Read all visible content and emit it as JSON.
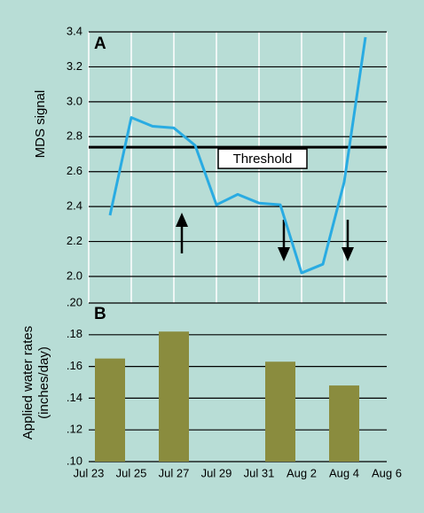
{
  "chart_data": [
    {
      "type": "line",
      "panel": "A",
      "ylabel": "MDS signal",
      "x": [
        "Jul 24",
        "Jul 25",
        "Jul 26",
        "Jul 27",
        "Jul 28",
        "Jul 29",
        "Jul 30",
        "Jul 31",
        "Aug 1",
        "Aug 2",
        "Aug 3",
        "Aug 4",
        "Aug 5"
      ],
      "values": [
        2.35,
        2.91,
        2.86,
        2.85,
        2.75,
        2.41,
        2.47,
        2.42,
        2.41,
        2.02,
        2.07,
        2.54,
        3.37
      ],
      "color": "#29abe2",
      "xlim": [
        "Jul 23",
        "Aug 6"
      ],
      "ylim": [
        2.0,
        3.4
      ],
      "yticks": [
        {
          "value": 2.0,
          "label": "2.0"
        },
        2.2,
        2.4,
        2.6,
        2.8,
        {
          "value": 3.0,
          "label": "3.0"
        },
        3.2,
        3.4
      ],
      "threshold": {
        "value": 2.74,
        "label": "Threshold"
      }
    },
    {
      "type": "bar",
      "panel": "B",
      "ylabel": [
        "Applied water rates",
        "(inches/day)"
      ],
      "x": [
        "Jul 24",
        "Jul 27",
        "Aug 1",
        "Aug 4"
      ],
      "values": [
        0.165,
        0.182,
        0.163,
        0.148
      ],
      "color": "#8a8c3e",
      "xlim": [
        "Jul 23",
        "Aug 6"
      ],
      "xticks": [
        "Jul 23",
        "Jul 25",
        "Jul 27",
        "Jul 29",
        "Jul 31",
        "Aug 2",
        "Aug 4",
        "Aug 6"
      ],
      "ylim": [
        0.1,
        0.2
      ],
      "yticks": [
        {
          "value": 0.1,
          "label": ".10"
        },
        {
          "value": 0.12,
          "label": ".12"
        },
        {
          "value": 0.14,
          "label": ".14"
        },
        {
          "value": 0.16,
          "label": ".16"
        },
        {
          "value": 0.18,
          "label": ".18"
        },
        {
          "value": 0.2,
          "label": ".20"
        }
      ]
    }
  ]
}
